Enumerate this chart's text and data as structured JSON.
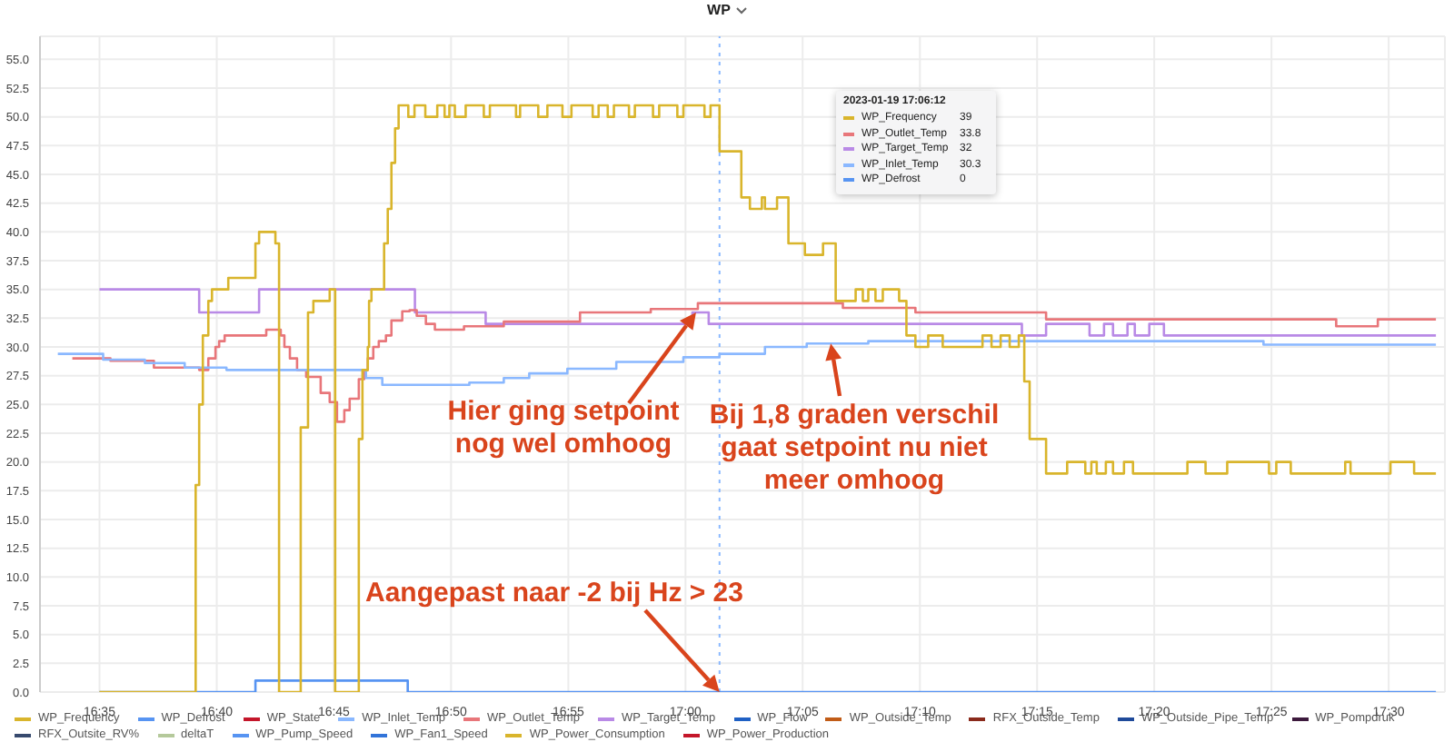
{
  "chart_data": {
    "type": "step",
    "title": "WP",
    "xlim": [
      16.541,
      17.54
    ],
    "ylim": [
      0,
      57
    ],
    "xticks": [
      {
        "value": 16.5833,
        "label": "16:35"
      },
      {
        "value": 16.6667,
        "label": "16:40"
      },
      {
        "value": 16.75,
        "label": "16:45"
      },
      {
        "value": 16.8333,
        "label": "16:50"
      },
      {
        "value": 16.9167,
        "label": "16:55"
      },
      {
        "value": 17,
        "label": "17:00"
      },
      {
        "value": 17.0833,
        "label": "17:05"
      },
      {
        "value": 17.1667,
        "label": "17:10"
      },
      {
        "value": 17.25,
        "label": "17:15"
      },
      {
        "value": 17.3333,
        "label": "17:20"
      },
      {
        "value": 17.4167,
        "label": "17:25"
      },
      {
        "value": 17.5,
        "label": "17:30"
      }
    ],
    "yticks": [
      {
        "value": 0,
        "label": "0.0"
      },
      {
        "value": 2.5,
        "label": "2.5"
      },
      {
        "value": 5,
        "label": "5.0"
      },
      {
        "value": 7.5,
        "label": "7.5"
      },
      {
        "value": 10,
        "label": "10.0"
      },
      {
        "value": 12.5,
        "label": "12.5"
      },
      {
        "value": 15,
        "label": "15.0"
      },
      {
        "value": 17.5,
        "label": "17.5"
      },
      {
        "value": 20,
        "label": "20.0"
      },
      {
        "value": 22.5,
        "label": "22.5"
      },
      {
        "value": 25,
        "label": "25.0"
      },
      {
        "value": 27.5,
        "label": "27.5"
      },
      {
        "value": 30,
        "label": "30.0"
      },
      {
        "value": 32.5,
        "label": "32.5"
      },
      {
        "value": 35,
        "label": "35.0"
      },
      {
        "value": 37.5,
        "label": "37.5"
      },
      {
        "value": 40,
        "label": "40.0"
      },
      {
        "value": 42.5,
        "label": "42.5"
      },
      {
        "value": 45,
        "label": "45.0"
      },
      {
        "value": 47.5,
        "label": "47.5"
      },
      {
        "value": 50,
        "label": "50.0"
      },
      {
        "value": 52.5,
        "label": "52.5"
      },
      {
        "value": 55,
        "label": "55.0"
      }
    ],
    "grid": true,
    "legend": "bottom",
    "marker": "none",
    "series": [
      {
        "name": "WP_Frequency",
        "color": "#d9b52c",
        "x": [
          16.5833,
          16.6517,
          16.6542,
          16.6568,
          16.6607,
          16.6633,
          16.6749,
          16.6942,
          16.6968,
          16.7084,
          16.711,
          16.7264,
          16.7316,
          16.7354,
          16.747,
          16.7509,
          16.7677,
          16.7703,
          16.7741,
          16.775,
          16.7767,
          16.7857,
          16.7883,
          16.7909,
          16.7935,
          16.796,
          16.8029,
          16.8073,
          16.815,
          16.8235,
          16.8287,
          16.8321,
          16.836,
          16.8437,
          16.8566,
          16.8609,
          16.8795,
          16.8824,
          16.8953,
          16.9018,
          16.9125,
          16.9189,
          16.934,
          16.9382,
          16.9447,
          16.9491,
          16.9598,
          16.964,
          16.9769,
          16.9813,
          16.9942,
          16.9985,
          17.0135,
          17.0178,
          17.0242,
          17.0397,
          17.0458,
          17.0543,
          17.0565,
          17.0651,
          17.0732,
          17.0849,
          17.0978,
          17.1033,
          17.1068,
          17.121,
          17.1261,
          17.13,
          17.1351,
          17.1403,
          17.1519,
          17.1571,
          17.1635,
          17.1726,
          17.1829,
          17.2112,
          17.2176,
          17.2241,
          17.2305,
          17.237,
          17.2409,
          17.2447,
          17.2564,
          17.2714,
          17.2843,
          17.2886,
          17.2924,
          17.2989,
          17.304,
          17.3118,
          17.3182,
          17.3569,
          17.3698,
          17.3852,
          17.4149,
          17.4201,
          17.4304,
          17.4691,
          17.4729,
          17.5013,
          17.5181,
          17.5336
        ],
        "values": [
          0,
          18,
          25,
          31,
          34,
          35,
          36,
          39,
          40,
          39,
          0,
          23,
          33,
          34,
          35,
          0,
          22,
          28,
          30,
          34,
          35,
          39,
          42,
          46,
          49,
          51,
          50,
          51,
          50,
          51,
          50,
          51,
          50,
          51,
          50,
          51,
          50,
          51,
          50,
          51,
          50,
          51,
          50,
          51,
          50,
          51,
          50,
          51,
          50,
          51,
          50,
          51,
          50,
          51,
          47,
          43,
          42,
          43,
          42,
          43,
          39,
          38,
          39,
          39,
          34,
          35,
          34,
          35,
          34,
          35,
          34,
          31,
          30,
          31,
          30,
          31,
          30,
          31,
          30,
          31,
          27,
          22,
          19,
          20,
          19,
          20,
          19,
          20,
          19,
          20,
          19,
          20,
          19,
          20,
          19,
          20,
          19,
          20,
          19,
          20,
          19,
          19
        ]
      },
      {
        "name": "WP_Defrost",
        "color": "#5794f2",
        "x": [
          16.5833,
          16.6942,
          16.8025,
          17.1033,
          17.5336
        ],
        "values": [
          0,
          1,
          0,
          0,
          0
        ]
      },
      {
        "name": "WP_State",
        "color": "#c4162a"
      },
      {
        "name": "WP_Inlet_Temp",
        "color": "#8ab8ff",
        "x": [
          16.5537,
          16.5859,
          16.6156,
          16.6439,
          16.6736,
          16.7728,
          16.7844,
          16.8463,
          16.8708,
          16.8889,
          16.916,
          16.9508,
          16.9985,
          17.0242,
          17.0565,
          17.0862,
          17.1033,
          17.13,
          17.411,
          17.5336
        ],
        "values": [
          29.4,
          28.9,
          28.6,
          28.2,
          28,
          27.3,
          26.7,
          26.9,
          27.3,
          27.7,
          28.1,
          28.7,
          29.1,
          29.4,
          30,
          30.3,
          30.3,
          30.5,
          30.2,
          30.2
        ]
      },
      {
        "name": "WP_Outlet_Temp",
        "color": "#e8767a",
        "x": [
          16.564,
          16.5911,
          16.622,
          16.6542,
          16.6607,
          16.6658,
          16.6684,
          16.6723,
          16.7019,
          16.7122,
          16.7148,
          16.7187,
          16.7238,
          16.7303,
          16.7406,
          16.747,
          16.7522,
          16.7574,
          16.7612,
          16.7677,
          16.7715,
          16.7741,
          16.778,
          16.7819,
          16.787,
          16.7909,
          16.7986,
          16.8038,
          16.8089,
          16.8154,
          16.8218,
          16.8425,
          16.8708,
          16.925,
          16.9753,
          17.0088,
          17.1033,
          17.1119,
          17.1635,
          17.2564,
          17.4627,
          17.4923,
          17.5336
        ],
        "values": [
          29,
          28.8,
          28.2,
          28,
          29,
          30,
          30.5,
          31,
          31.5,
          31,
          30,
          29,
          28,
          27.4,
          26,
          25.2,
          23.5,
          24.5,
          25.5,
          27.2,
          28,
          29,
          30,
          30.5,
          31,
          32.3,
          33.1,
          33.2,
          32.7,
          32,
          31.5,
          31.8,
          32.2,
          33,
          33.3,
          33.8,
          33.8,
          33.4,
          33,
          32.4,
          31.8,
          32.4,
          32.4
        ]
      },
      {
        "name": "WP_Target_Temp",
        "color": "#b98ae6",
        "x": [
          16.5833,
          16.6542,
          16.6968,
          16.8076,
          16.8579,
          17.0049,
          17.0165,
          17.1033,
          17.2392,
          17.2564,
          17.2873,
          17.2976,
          17.304,
          17.3143,
          17.3195,
          17.3298,
          17.3402,
          17.5336
        ],
        "values": [
          35,
          33,
          35,
          33,
          32,
          33,
          32,
          32,
          31,
          32,
          31,
          32,
          31,
          32,
          31,
          32,
          31,
          31
        ]
      },
      {
        "name": "WP_Flow",
        "color": "#1f60c4"
      },
      {
        "name": "WP_Outside_Temp",
        "color": "#c15c17"
      },
      {
        "name": "RFX_Outside_Temp",
        "color": "#8a2a1b"
      },
      {
        "name": "WP_Outside_Pipe_Temp",
        "color": "#1f4a9a"
      },
      {
        "name": "WP_Pompdruk",
        "color": "#3d1a3d"
      },
      {
        "name": "RFX_Outsite_RV%",
        "color": "#374a6e"
      },
      {
        "name": "deltaT",
        "color": "#b5c99b"
      },
      {
        "name": "WP_Pump_Speed",
        "color": "#5794f2"
      },
      {
        "name": "WP_Fan1_Speed",
        "color": "#3274d9"
      },
      {
        "name": "WP_Power_Consumption",
        "color": "#d9b52c"
      },
      {
        "name": "WP_Power_Production",
        "color": "#c4162a"
      }
    ],
    "ref_lines": [
      {
        "axis": "x",
        "value": 17.0242,
        "color": "#8ab8ff",
        "line_style": "dotted"
      }
    ],
    "annotations": [
      "2023-01-19 17:06:12",
      "39",
      "33.8",
      "32",
      "30.3",
      "0",
      {
        "text": "Hier ging setpoint nog wel omhoog",
        "x": 17.0075,
        "y": 33
      },
      {
        "text": "Bij 1,8 graden verschil gaat setpoint nu niet meer omhoog",
        "x": 17.1033,
        "y": 30.3
      },
      {
        "text": "Aangepast naar -2 bij Hz > 23",
        "x": 17.0242,
        "y": 0
      }
    ]
  }
}
